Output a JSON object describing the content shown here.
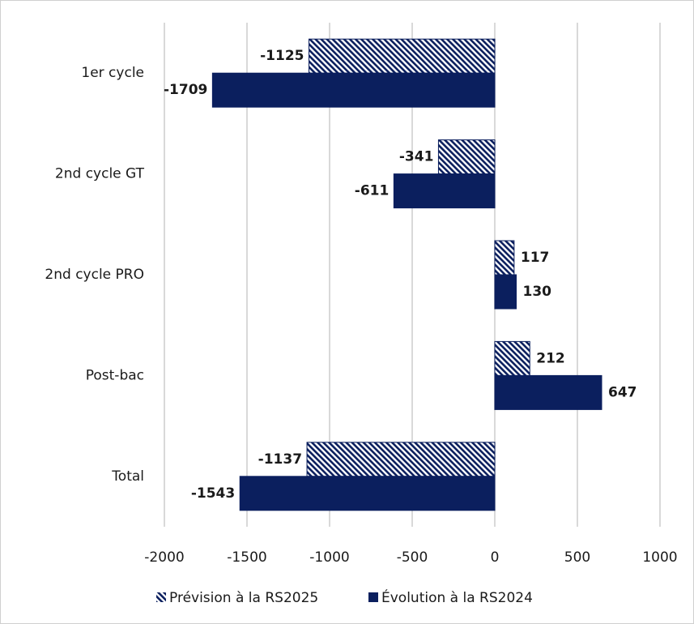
{
  "chart_data": {
    "type": "bar",
    "orientation": "horizontal",
    "categories": [
      "1er cycle",
      "2nd cycle GT",
      "2nd cycle PRO",
      "Post-bac",
      "Total"
    ],
    "series": [
      {
        "name": "Prévision à la RS2025",
        "color": "#0b1f5e",
        "pattern": "hatch",
        "values": [
          -1125,
          -341,
          117,
          212,
          -1137
        ]
      },
      {
        "name": "Évolution à la RS2024",
        "color": "#0b1f5e",
        "pattern": "solid",
        "values": [
          -1709,
          -611,
          130,
          647,
          -1543
        ]
      }
    ],
    "xlim": [
      -2000,
      1000
    ],
    "xticks": [
      -2000,
      -1500,
      -1000,
      -500,
      0,
      500,
      1000
    ],
    "grid": true,
    "legend": "bottom"
  }
}
